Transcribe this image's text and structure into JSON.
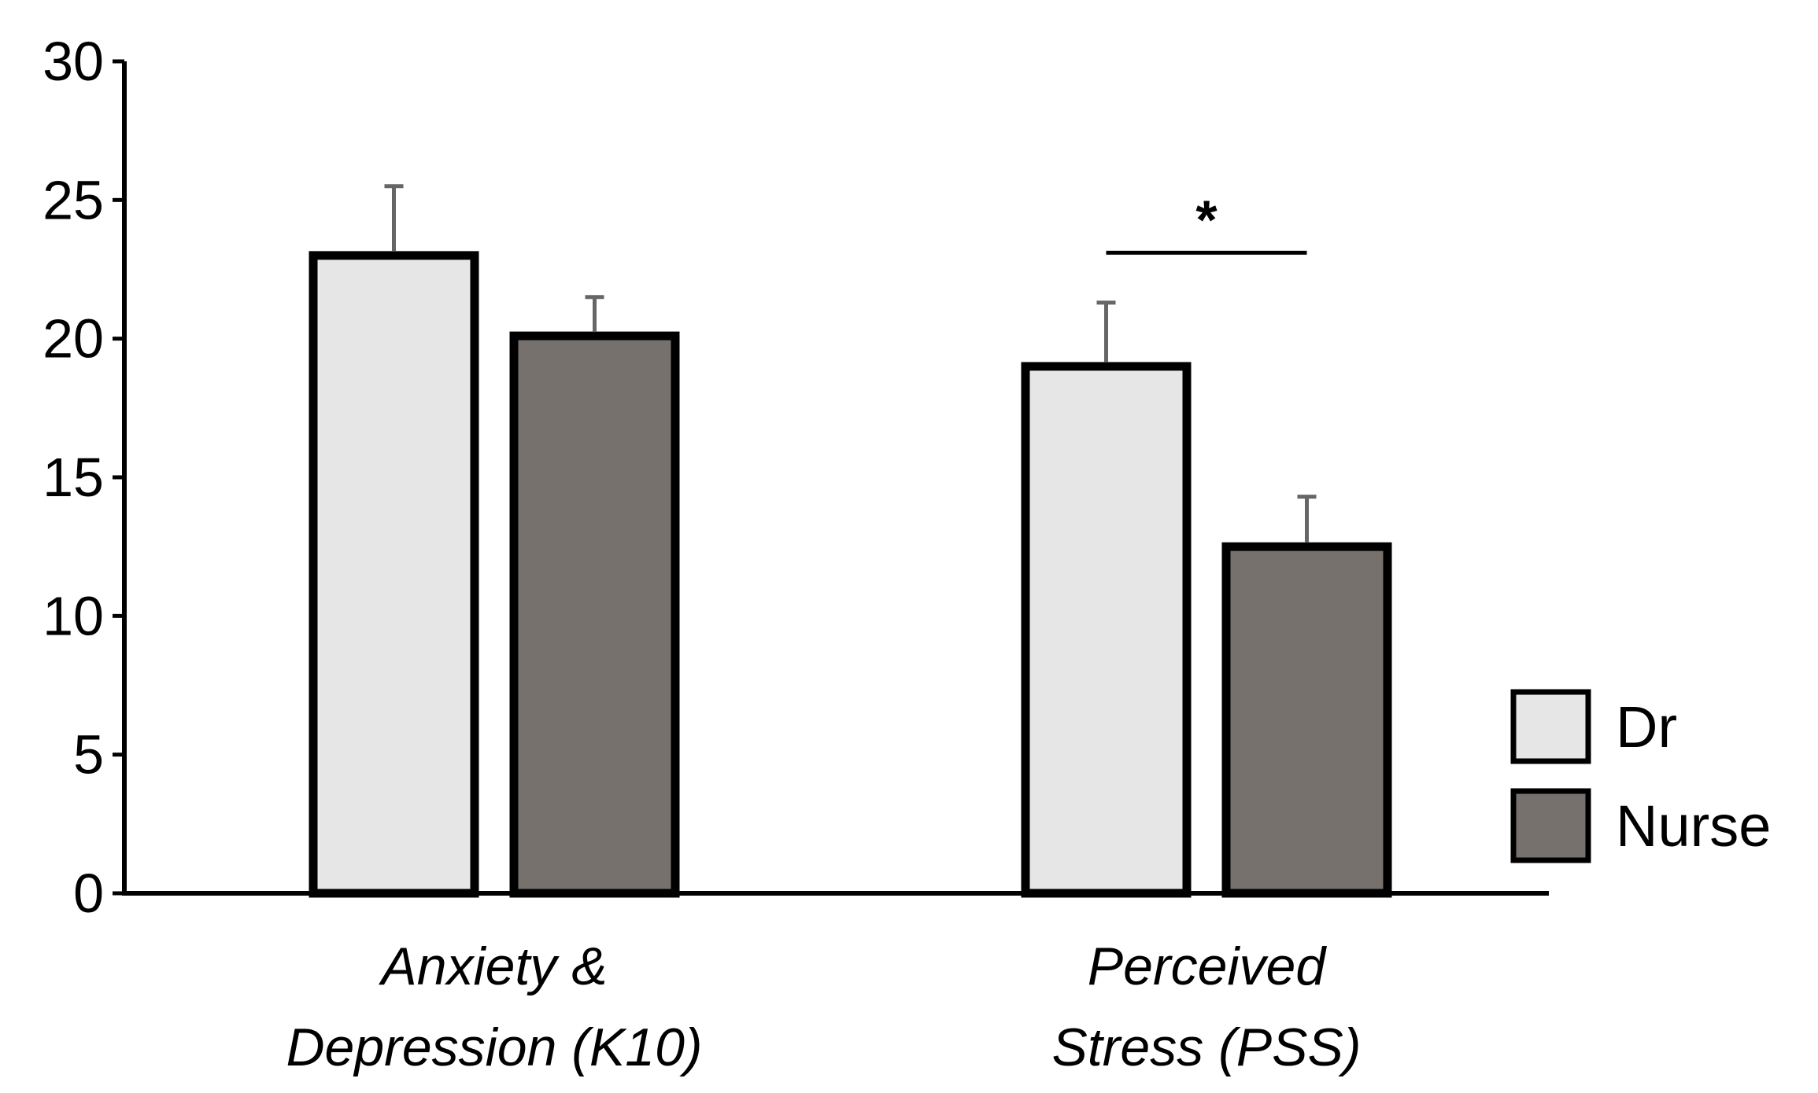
{
  "chart_data": {
    "type": "bar",
    "title": "",
    "xlabel": "",
    "ylabel": "",
    "ylim": [
      0,
      30
    ],
    "yticks": [
      0,
      5,
      10,
      15,
      20,
      25,
      30
    ],
    "categories": [
      {
        "line1": "Anxiety &",
        "line2": "Depression (K10)"
      },
      {
        "line1": "Perceived",
        "line2": "Stress (PSS)"
      }
    ],
    "series": [
      {
        "name": "Dr",
        "color": "#e6e6e6",
        "values": [
          23.0,
          19.0
        ],
        "errors": [
          2.5,
          2.3
        ]
      },
      {
        "name": "Nurse",
        "color": "#77716e",
        "values": [
          20.1,
          12.5
        ],
        "errors": [
          1.4,
          1.8
        ]
      }
    ],
    "annotations": [
      {
        "label": "*",
        "category_index": 1,
        "y": 23.1
      }
    ],
    "legend": {
      "position": "right",
      "entries": [
        "Dr",
        "Nurse"
      ]
    },
    "grid": false
  }
}
